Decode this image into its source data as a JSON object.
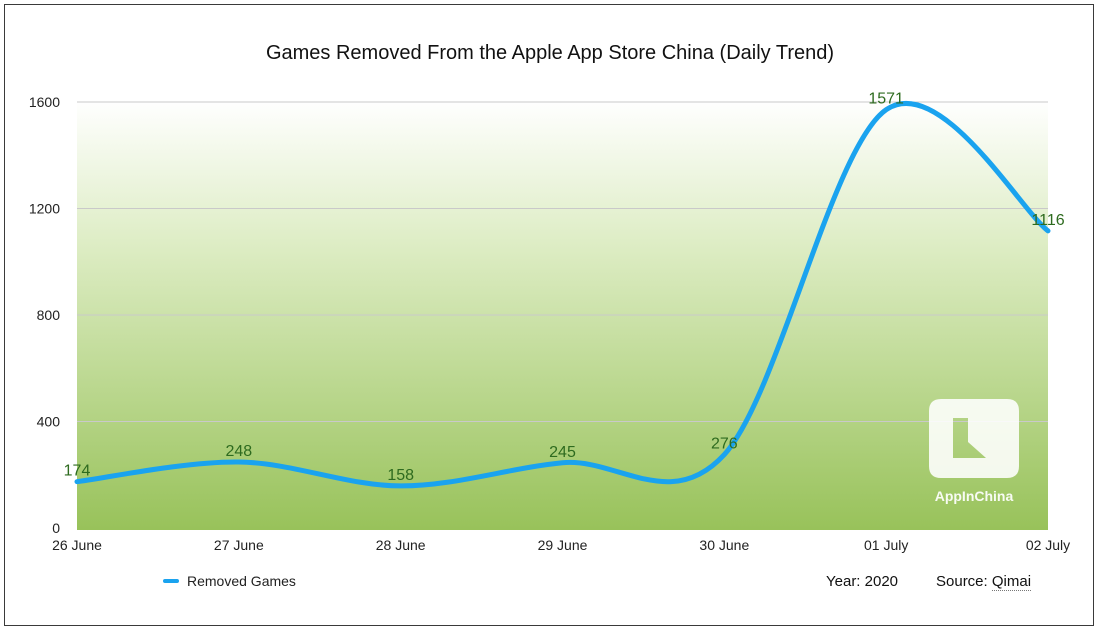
{
  "chart_data": {
    "type": "line",
    "title": "Games Removed From the Apple App Store China (Daily Trend)",
    "categories": [
      "26 June",
      "27 June",
      "28 June",
      "29 June",
      "30 June",
      "01 July",
      "02 July"
    ],
    "series": [
      {
        "name": "Removed Games",
        "values": [
          174,
          248,
          158,
          245,
          276,
          1571,
          1116
        ],
        "color": "#1aa3ef"
      }
    ],
    "ylim": [
      0,
      1600
    ],
    "yticks": [
      0,
      400,
      800,
      1200,
      1600
    ],
    "grid": true,
    "legend": "bottom-left",
    "data_label_color": "#2e6b1f"
  },
  "footer": {
    "year": "Year: 2020",
    "source_prefix": "Source: ",
    "source_name": "Qimai"
  },
  "watermark": {
    "text": "AppInChina"
  }
}
